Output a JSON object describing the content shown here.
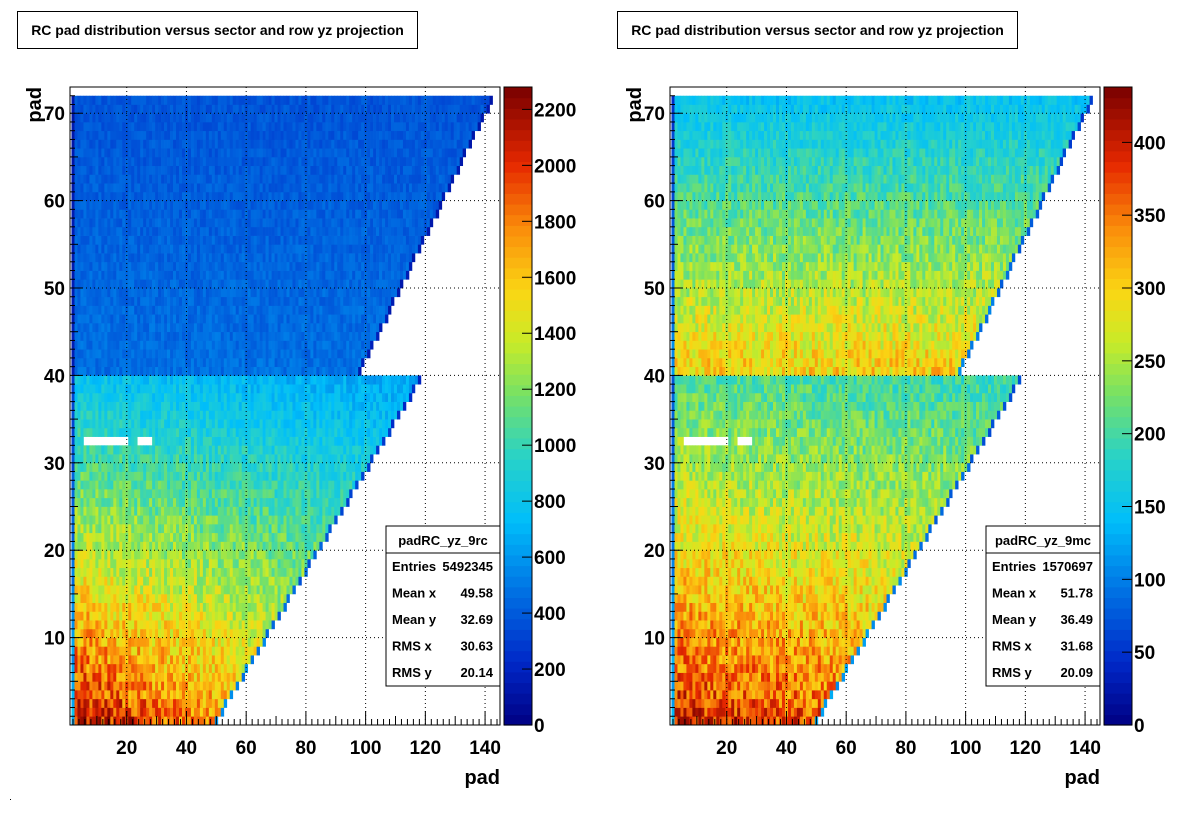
{
  "chart_data": [
    {
      "type": "heatmap",
      "title": "RC pad distribution versus sector and row yz projection",
      "xlabel": "pad",
      "ylabel": "pad",
      "xlim": [
        1,
        145
      ],
      "ylim": [
        0,
        73
      ],
      "x_ticks": [
        20,
        40,
        60,
        80,
        100,
        120,
        140
      ],
      "y_ticks": [
        10,
        20,
        30,
        40,
        50,
        60,
        70
      ],
      "x_tick_labels": [
        "20",
        "40",
        "60",
        "80",
        "100",
        "120",
        "140"
      ],
      "y_tick_labels": [
        "10",
        "20",
        "30",
        "40",
        "50",
        "60",
        "70"
      ],
      "grid": true,
      "colorscale": {
        "min": 0,
        "max": 2280,
        "ticks": [
          0,
          200,
          400,
          600,
          800,
          1000,
          1200,
          1400,
          1600,
          1800,
          2000,
          2200
        ],
        "tick_labels": [
          "0",
          "200",
          "400",
          "600",
          "800",
          "1000",
          "1200",
          "1400",
          "1600",
          "1800",
          "2000",
          "2200"
        ],
        "palette": "rainbow"
      },
      "density_model": {
        "outer_min": 380,
        "outer_max": 470,
        "inner_bottom": 2150,
        "inner_top": 800,
        "inner_falloff_x": 0.55
      },
      "shape": {
        "outer_sector_rows": [
          41,
          72
        ],
        "outer_edge_pad_at_row_41": 98,
        "outer_edge_pad_at_row_72": 142,
        "inner_sector_rows": [
          1,
          40
        ],
        "inner_edge_pad_at_row_1": 50,
        "inner_edge_pad_at_row_40": 118,
        "dead_row": 33,
        "dead_pads": [
          [
            6,
            20
          ],
          [
            24,
            28
          ]
        ]
      },
      "stats": {
        "name": "padRC_yz_9rc",
        "entries": "5492345",
        "mean_x": "49.58",
        "mean_y": "32.69",
        "rms_x": "30.63",
        "rms_y": "20.14"
      }
    },
    {
      "type": "heatmap",
      "title": "RC pad distribution versus sector and row yz projection",
      "xlabel": "pad",
      "ylabel": "pad",
      "xlim": [
        1,
        145
      ],
      "ylim": [
        0,
        73
      ],
      "x_ticks": [
        20,
        40,
        60,
        80,
        100,
        120,
        140
      ],
      "y_ticks": [
        10,
        20,
        30,
        40,
        50,
        60,
        70
      ],
      "x_tick_labels": [
        "20",
        "40",
        "60",
        "80",
        "100",
        "120",
        "140"
      ],
      "y_tick_labels": [
        "10",
        "20",
        "30",
        "40",
        "50",
        "60",
        "70"
      ],
      "grid": true,
      "colorscale": {
        "min": 0,
        "max": 438,
        "ticks": [
          0,
          50,
          100,
          150,
          200,
          250,
          300,
          350,
          400
        ],
        "tick_labels": [
          "0",
          "50",
          "100",
          "150",
          "200",
          "250",
          "300",
          "350",
          "400"
        ],
        "palette": "rainbow"
      },
      "density_model": {
        "outer_min": 150,
        "outer_max": 300,
        "inner_bottom": 400,
        "inner_top": 210,
        "inner_falloff_x": 0.25
      },
      "shape": {
        "outer_sector_rows": [
          41,
          72
        ],
        "outer_edge_pad_at_row_41": 98,
        "outer_edge_pad_at_row_72": 142,
        "inner_sector_rows": [
          1,
          40
        ],
        "inner_edge_pad_at_row_1": 50,
        "inner_edge_pad_at_row_40": 118,
        "dead_row": 33,
        "dead_pads": [
          [
            6,
            20
          ],
          [
            24,
            28
          ]
        ]
      },
      "stats": {
        "name": "padRC_yz_9mc",
        "entries": "1570697",
        "mean_x": "51.78",
        "mean_y": "36.49",
        "rms_x": "31.68",
        "rms_y": "20.09"
      }
    }
  ],
  "labels": {
    "entries": "Entries",
    "mean_x": "Mean x",
    "mean_y": "Mean y",
    "rms_x": "RMS x",
    "rms_y": "RMS y"
  }
}
